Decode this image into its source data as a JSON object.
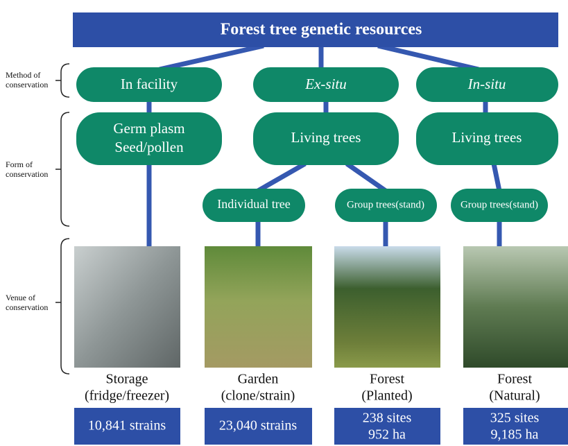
{
  "header": {
    "title": "Forest tree genetic resources"
  },
  "levels": [
    {
      "lines": [
        "Method of",
        "conservation"
      ]
    },
    {
      "lines": [
        "Form of",
        "conservation"
      ]
    },
    {
      "lines": [
        "Venue of",
        "conservation"
      ]
    }
  ],
  "methods": [
    "In facility",
    "Ex-situ",
    "In-situ"
  ],
  "forms": [
    {
      "lines": [
        "Germ plasm",
        "Seed/pollen"
      ]
    },
    {
      "lines": [
        "Living trees"
      ]
    },
    {
      "lines": [
        "Living trees"
      ]
    }
  ],
  "subforms": [
    "Individual tree",
    "Group trees(stand)",
    "Group trees(stand)"
  ],
  "venues": [
    {
      "lines": [
        "Storage",
        "(fridge/freezer)"
      ],
      "counts": [
        "10,841 strains"
      ]
    },
    {
      "lines": [
        "Garden",
        "(clone/strain)"
      ],
      "counts": [
        "23,040 strains"
      ]
    },
    {
      "lines": [
        "Forest",
        "(Planted)"
      ],
      "counts": [
        "238 sites",
        "952 ha"
      ]
    },
    {
      "lines": [
        "Forest",
        "(Natural)"
      ],
      "counts": [
        "325 sites",
        "9,185 ha"
      ]
    }
  ]
}
